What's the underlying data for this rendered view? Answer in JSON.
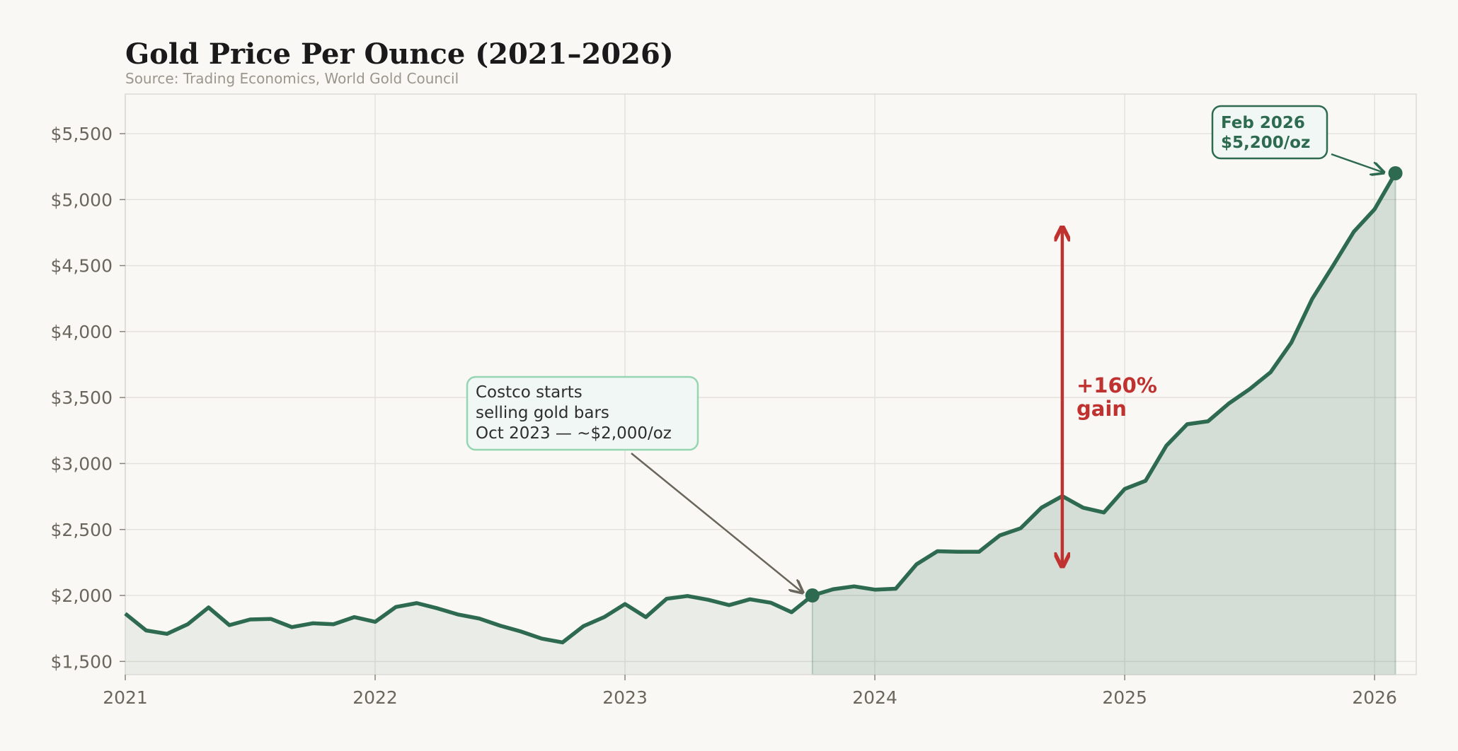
{
  "chart_data": {
    "type": "line",
    "title": "Gold Price Per Ounce (2021–2026)",
    "subtitle": "Source: Trading Economics, World Gold Council",
    "xlabel": "",
    "ylabel": "",
    "xlim": [
      "2021-01",
      "2026-03"
    ],
    "ylim": [
      1400,
      5800
    ],
    "grid": true,
    "x_ticks": [
      "2021",
      "2022",
      "2023",
      "2024",
      "2025",
      "2026"
    ],
    "y_ticks": [
      "$1,500",
      "$2,000",
      "$2,500",
      "$3,000",
      "$3,500",
      "$4,000",
      "$4,500",
      "$5,000",
      "$5,500"
    ],
    "y_tick_values": [
      1500,
      2000,
      2500,
      3000,
      3500,
      4000,
      4500,
      5000,
      5500
    ],
    "x": [
      "2021-01",
      "2021-02",
      "2021-03",
      "2021-04",
      "2021-05",
      "2021-06",
      "2021-07",
      "2021-08",
      "2021-09",
      "2021-10",
      "2021-11",
      "2021-12",
      "2022-01",
      "2022-02",
      "2022-03",
      "2022-04",
      "2022-05",
      "2022-06",
      "2022-07",
      "2022-08",
      "2022-09",
      "2022-10",
      "2022-11",
      "2022-12",
      "2023-01",
      "2023-02",
      "2023-03",
      "2023-04",
      "2023-05",
      "2023-06",
      "2023-07",
      "2023-08",
      "2023-09",
      "2023-10",
      "2023-11",
      "2023-12",
      "2024-01",
      "2024-02",
      "2024-03",
      "2024-04",
      "2024-05",
      "2024-06",
      "2024-07",
      "2024-08",
      "2024-09",
      "2024-10",
      "2024-11",
      "2024-12",
      "2025-01",
      "2025-02",
      "2025-03",
      "2025-04",
      "2025-05",
      "2025-06",
      "2025-07",
      "2025-08",
      "2025-09",
      "2025-10",
      "2025-11",
      "2025-12",
      "2026-01",
      "2026-02"
    ],
    "series": [
      {
        "values": [
          1862,
          1735,
          1709,
          1782,
          1909,
          1775,
          1818,
          1822,
          1760,
          1789,
          1782,
          1836,
          1800,
          1913,
          1942,
          1902,
          1855,
          1825,
          1771,
          1727,
          1673,
          1644,
          1767,
          1836,
          1935,
          1836,
          1975,
          1996,
          1967,
          1927,
          1971,
          1945,
          1873,
          2000,
          2047,
          2069,
          2044,
          2051,
          2236,
          2335,
          2331,
          2331,
          2455,
          2509,
          2665,
          2753,
          2665,
          2629,
          2807,
          2869,
          3135,
          3298,
          3320,
          3455,
          3564,
          3691,
          3916,
          4247,
          4498,
          4756,
          4927,
          5200
        ],
        "color": "#2d6a4f"
      }
    ],
    "highlight_start": "2023-10",
    "annotations": {
      "costco": {
        "lines": [
          "Costco starts",
          "selling gold bars",
          "Oct 2023 — ~$2,000/oz"
        ],
        "x": "2023-10",
        "y": 2000
      },
      "latest": {
        "lines": [
          "Feb 2026",
          "$5,200/oz"
        ],
        "x": "2026-02",
        "y": 5200
      },
      "gain": {
        "lines": [
          "+160%",
          "gain"
        ],
        "x": "2024-10",
        "y_from": 2230,
        "y_to": 4780
      }
    },
    "colors": {
      "line": "#2d6a4f",
      "gain": "#c0322f",
      "costco_border": "#95d5b2",
      "background": "#f9f8f5"
    }
  }
}
